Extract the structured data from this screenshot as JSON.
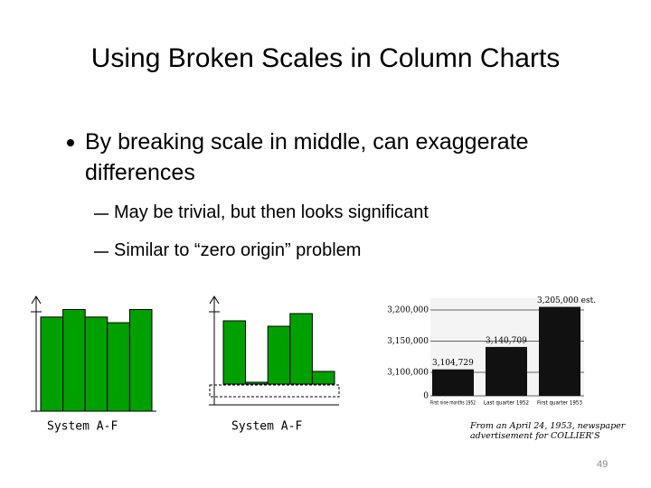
{
  "title": "Using Broken Scales in Column Charts",
  "bullets": [
    {
      "text": "By breaking scale in middle, can exaggerate differences",
      "sub": [
        "May be trivial, but then looks significant",
        "Similar to “zero origin” problem"
      ]
    }
  ],
  "charts": [
    {
      "type": "bar",
      "label": "System A-F",
      "values": [
        100,
        108,
        100,
        94,
        108
      ],
      "ylim": [
        0,
        120
      ],
      "color": "#00a000"
    },
    {
      "type": "bar",
      "label": "System A-F",
      "values": [
        70,
        2,
        64,
        78,
        14
      ],
      "ylim": [
        0,
        100
      ],
      "color": "#00a000",
      "broken": true
    },
    {
      "type": "bar",
      "categories": [
        "First nine months 1952",
        "Last quarter 1952",
        "First quarter 1953"
      ],
      "values": [
        3104729,
        3140709,
        3205000
      ],
      "value_labels": [
        "3,104,729",
        "3,140,709",
        "3,205,000 est."
      ],
      "yticks": [
        0,
        {
          "value": 3100000,
          "label": "3,100,000"
        },
        {
          "value": 3150000,
          "label": "3,150,000"
        },
        {
          "value": 3200000,
          "label": "3,200,000"
        }
      ],
      "color": "#111111",
      "caption": "From an April 24, 1953, newspaper advertisement for COLLIER'S"
    }
  ],
  "page_number": "49"
}
